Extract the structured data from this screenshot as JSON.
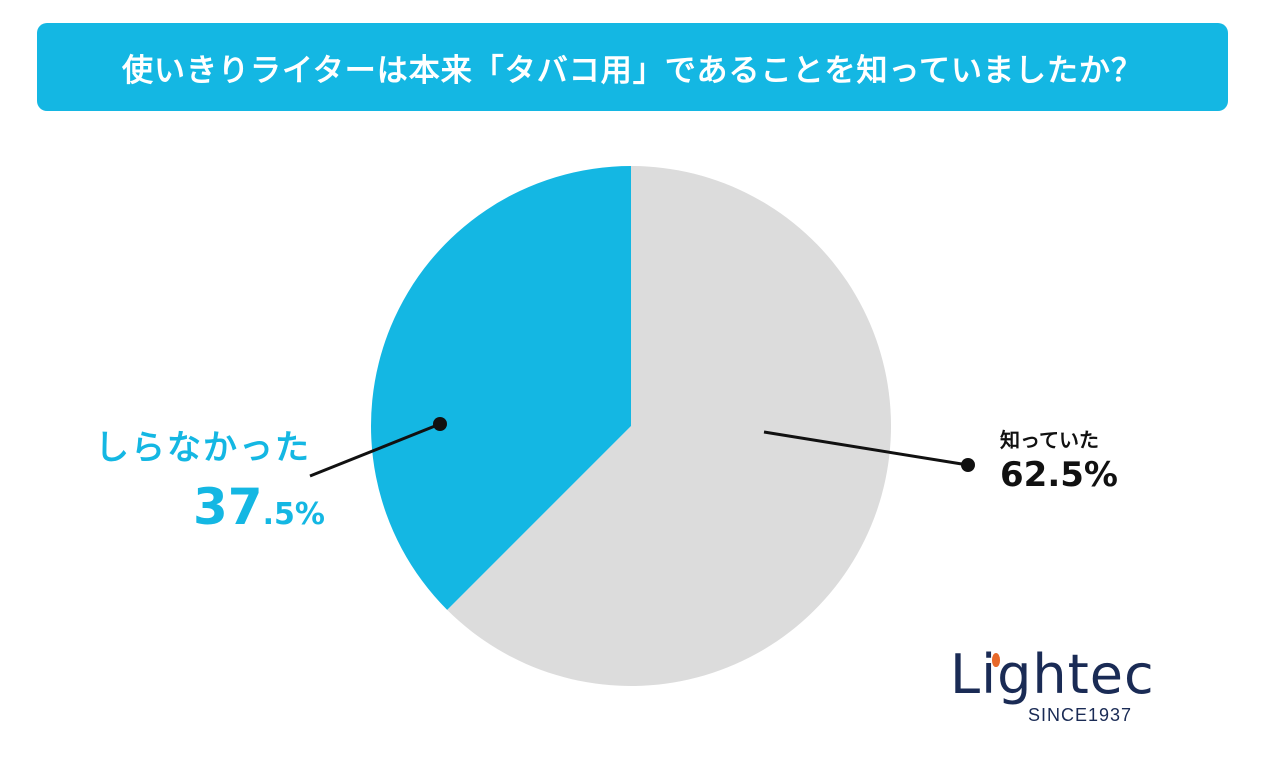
{
  "title": "使いきりライターは本来「タバコ用」であることを知っていましたか？",
  "colors": {
    "accent": "#14b7e3",
    "gray": "#dcdcdc",
    "text_dark": "#111111",
    "logo_navy": "#1a2b55",
    "logo_orange": "#e8692a"
  },
  "chart_data": {
    "type": "pie",
    "title": "使いきりライターは本来「タバコ用」であることを知っていましたか？",
    "categories": [
      "知っていた",
      "しらなかった"
    ],
    "values": [
      62.5,
      37.5
    ],
    "unit": "%",
    "colors": [
      "#dcdcdc",
      "#14b7e3"
    ]
  },
  "labels": {
    "left_category": "しらなかった",
    "left_value_int": "37",
    "left_value_rest": ".5%",
    "right_category": "知っていた",
    "right_value": "62.5%"
  },
  "logo": {
    "name": "Lightec",
    "tagline": "SINCE1937"
  }
}
